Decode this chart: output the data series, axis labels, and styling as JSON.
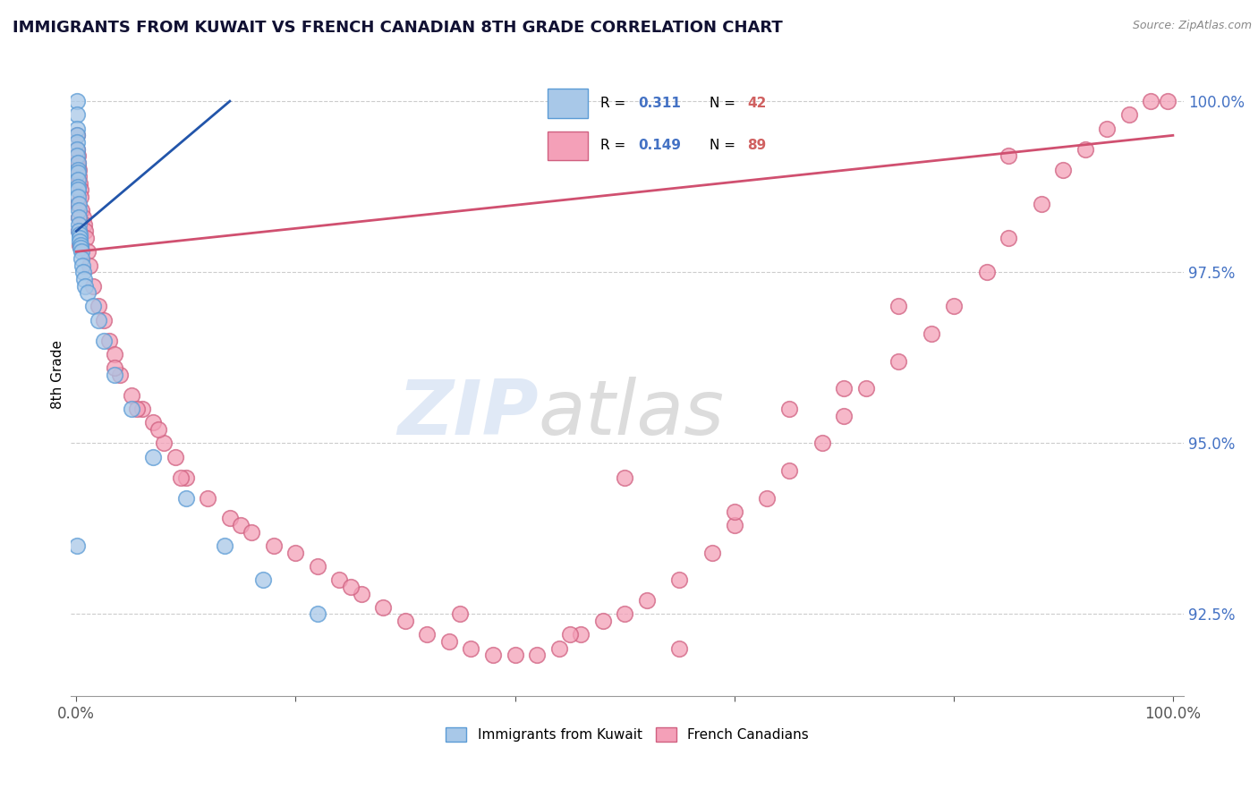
{
  "title": "IMMIGRANTS FROM KUWAIT VS FRENCH CANADIAN 8TH GRADE CORRELATION CHART",
  "source": "Source: ZipAtlas.com",
  "ylabel": "8th Grade",
  "kuwait_color": "#a8c8e8",
  "kuwait_edge": "#5b9bd5",
  "french_color": "#f4a0b8",
  "french_edge": "#d06080",
  "kuwait_line_color": "#2255aa",
  "french_line_color": "#d05070",
  "kuwait_R": 0.311,
  "kuwait_N": 42,
  "french_R": 0.149,
  "french_N": 89,
  "legend_label_kuwait": "Immigrants from Kuwait",
  "legend_label_french": "French Canadians",
  "kuwait_x": [
    0.05,
    0.05,
    0.05,
    0.08,
    0.08,
    0.1,
    0.1,
    0.12,
    0.12,
    0.15,
    0.15,
    0.15,
    0.18,
    0.18,
    0.2,
    0.2,
    0.22,
    0.25,
    0.25,
    0.28,
    0.3,
    0.32,
    0.35,
    0.4,
    0.45,
    0.5,
    0.55,
    0.6,
    0.7,
    0.8,
    1.0,
    1.5,
    2.0,
    2.5,
    3.5,
    5.0,
    7.0,
    10.0,
    13.5,
    17.0,
    22.0,
    0.05
  ],
  "kuwait_y": [
    100.0,
    99.8,
    99.6,
    99.5,
    99.4,
    99.3,
    99.2,
    99.1,
    99.0,
    98.95,
    98.85,
    98.75,
    98.7,
    98.6,
    98.5,
    98.4,
    98.3,
    98.2,
    98.1,
    98.05,
    98.0,
    97.95,
    97.9,
    97.85,
    97.8,
    97.7,
    97.6,
    97.5,
    97.4,
    97.3,
    97.2,
    97.0,
    96.8,
    96.5,
    96.0,
    95.5,
    94.8,
    94.2,
    93.5,
    93.0,
    92.5,
    93.5
  ],
  "kuwait_trend_x": [
    0.0,
    14.0
  ],
  "kuwait_trend_y": [
    98.1,
    100.0
  ],
  "french_x": [
    0.08,
    0.1,
    0.12,
    0.15,
    0.18,
    0.2,
    0.25,
    0.3,
    0.35,
    0.4,
    0.5,
    0.6,
    0.7,
    0.8,
    0.9,
    1.0,
    1.2,
    1.5,
    2.0,
    2.5,
    3.0,
    3.5,
    4.0,
    5.0,
    6.0,
    7.0,
    8.0,
    9.0,
    10.0,
    12.0,
    14.0,
    15.0,
    16.0,
    18.0,
    20.0,
    22.0,
    24.0,
    26.0,
    28.0,
    30.0,
    32.0,
    34.0,
    36.0,
    38.0,
    40.0,
    42.0,
    44.0,
    46.0,
    48.0,
    50.0,
    52.0,
    55.0,
    58.0,
    60.0,
    63.0,
    65.0,
    68.0,
    70.0,
    72.0,
    75.0,
    78.0,
    80.0,
    83.0,
    85.0,
    88.0,
    90.0,
    92.0,
    94.0,
    96.0,
    98.0,
    99.5,
    0.15,
    0.2,
    0.25,
    0.3,
    3.5,
    5.5,
    7.5,
    9.5,
    25.0,
    35.0,
    45.0,
    55.0,
    65.0,
    75.0,
    85.0,
    50.0,
    60.0,
    70.0
  ],
  "french_y": [
    99.5,
    99.3,
    99.2,
    99.1,
    99.05,
    99.0,
    98.9,
    98.8,
    98.7,
    98.6,
    98.4,
    98.3,
    98.2,
    98.1,
    98.0,
    97.8,
    97.6,
    97.3,
    97.0,
    96.8,
    96.5,
    96.3,
    96.0,
    95.7,
    95.5,
    95.3,
    95.0,
    94.8,
    94.5,
    94.2,
    93.9,
    93.8,
    93.7,
    93.5,
    93.4,
    93.2,
    93.0,
    92.8,
    92.6,
    92.4,
    92.2,
    92.1,
    92.0,
    91.9,
    91.9,
    91.9,
    92.0,
    92.2,
    92.4,
    92.5,
    92.7,
    93.0,
    93.4,
    93.8,
    94.2,
    94.6,
    95.0,
    95.4,
    95.8,
    96.2,
    96.6,
    97.0,
    97.5,
    98.0,
    98.5,
    99.0,
    99.3,
    99.6,
    99.8,
    100.0,
    100.0,
    98.5,
    98.3,
    98.1,
    97.9,
    96.1,
    95.5,
    95.2,
    94.5,
    92.9,
    92.5,
    92.2,
    92.0,
    95.5,
    97.0,
    99.2,
    94.5,
    94.0,
    95.8
  ],
  "french_trend_x": [
    0.0,
    100.0
  ],
  "french_trend_y": [
    97.8,
    99.5
  ],
  "yticks": [
    92.5,
    95.0,
    97.5,
    100.0
  ],
  "ytick_labels": [
    "92.5%",
    "95.0%",
    "97.5%",
    "100.0%"
  ],
  "ylim_bottom": 91.3,
  "ylim_top": 100.7,
  "xlim_left": -0.5,
  "xlim_right": 101.0
}
